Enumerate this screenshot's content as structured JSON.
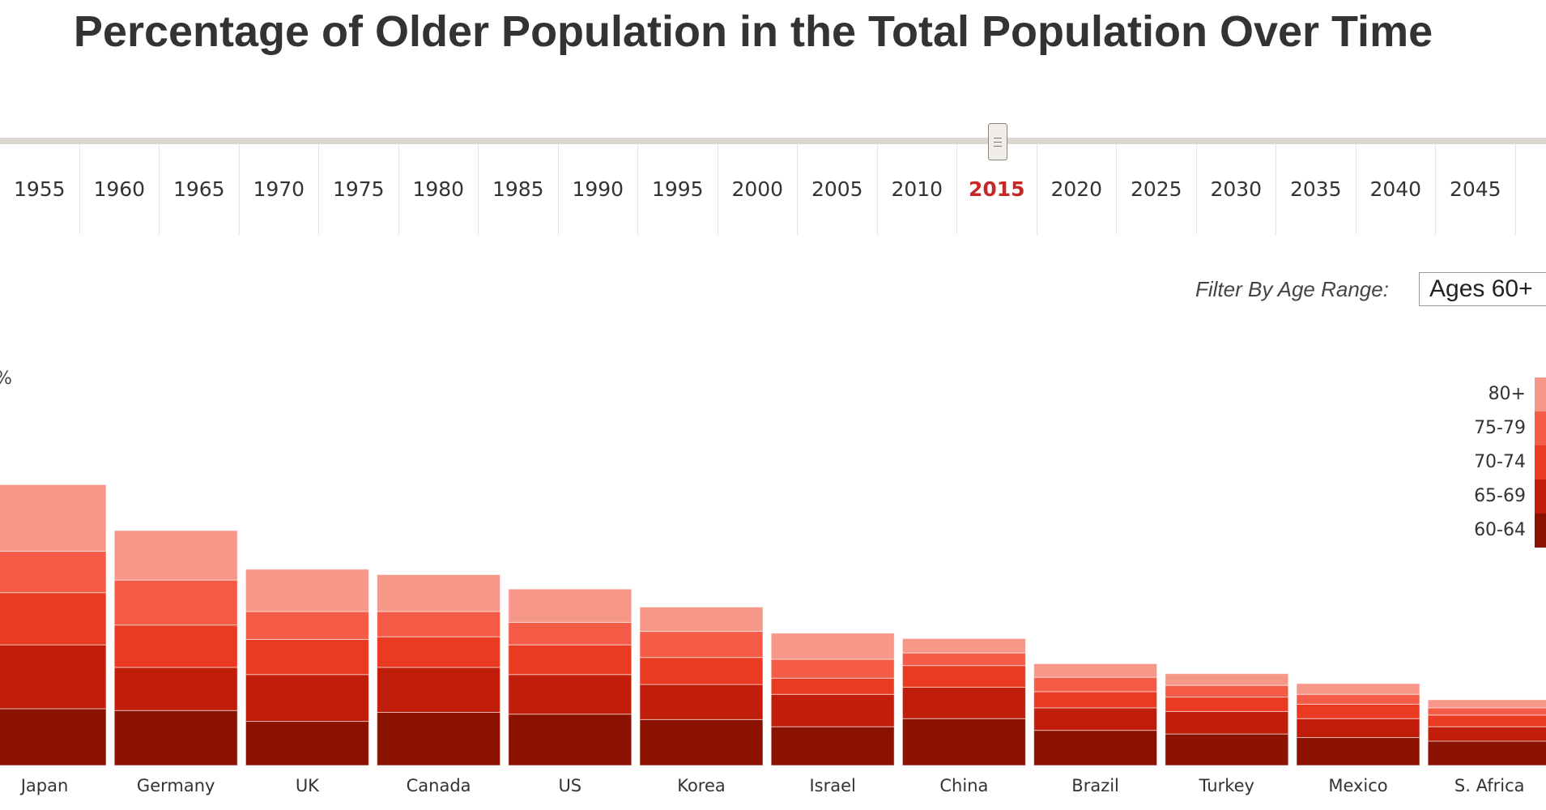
{
  "title": "Percentage of Older Population in the Total Population Over Time",
  "timeline": {
    "years": [
      "1955",
      "1960",
      "1965",
      "1970",
      "1975",
      "1980",
      "1985",
      "1990",
      "1995",
      "2000",
      "2005",
      "2010",
      "2015",
      "2020",
      "2025",
      "2030",
      "2035",
      "2040",
      "2045",
      "2"
    ],
    "selected": "2015"
  },
  "filter": {
    "label": "Filter By Age Range:",
    "value": "Ages 60+"
  },
  "axis_fragment": "%",
  "colors": {
    "60-64": "#8b1200",
    "65-69": "#c01e0a",
    "70-74": "#eb3a22",
    "75-79": "#f45c47",
    "80+": "#f7978a"
  },
  "chart_data": {
    "type": "bar",
    "stacked": true,
    "categories": [
      "Japan",
      "Germany",
      "UK",
      "Canada",
      "US",
      "Korea",
      "Israel",
      "China",
      "Brazil",
      "Turkey",
      "Mexico",
      "S. Africa"
    ],
    "ylim": [
      0,
      36
    ],
    "series": [
      {
        "name": "60-64",
        "values": [
          6.3,
          6.1,
          4.9,
          5.9,
          5.7,
          5.1,
          4.3,
          5.2,
          3.9,
          3.5,
          3.1,
          2.7
        ]
      },
      {
        "name": "65-69",
        "values": [
          7.1,
          4.8,
          5.2,
          5.0,
          4.4,
          3.9,
          3.6,
          3.5,
          2.5,
          2.5,
          2.1,
          1.6
        ]
      },
      {
        "name": "70-74",
        "values": [
          5.8,
          4.7,
          3.9,
          3.4,
          3.3,
          3.0,
          1.8,
          2.4,
          1.8,
          1.6,
          1.6,
          1.3
        ]
      },
      {
        "name": "75-79",
        "values": [
          4.6,
          5.0,
          3.1,
          2.8,
          2.5,
          2.9,
          2.1,
          1.4,
          1.6,
          1.3,
          1.1,
          0.8
        ]
      },
      {
        "name": "80+",
        "values": [
          7.4,
          5.5,
          4.7,
          4.1,
          3.7,
          2.7,
          2.9,
          1.6,
          1.5,
          1.3,
          1.2,
          0.9
        ]
      }
    ]
  }
}
